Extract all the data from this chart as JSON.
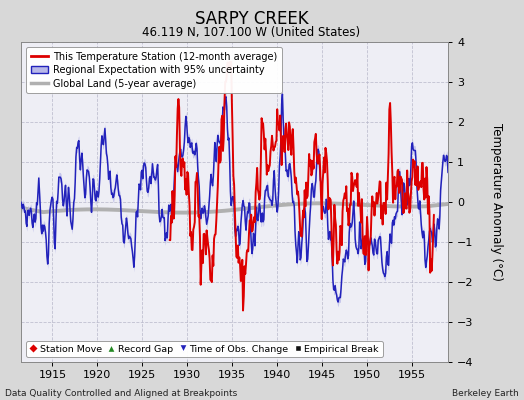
{
  "title": "SARPY CREEK",
  "subtitle": "46.119 N, 107.100 W (United States)",
  "ylabel": "Temperature Anomaly (°C)",
  "xlabel_note": "Data Quality Controlled and Aligned at Breakpoints",
  "credit": "Berkeley Earth",
  "xlim": [
    1911.5,
    1959.0
  ],
  "ylim": [
    -4,
    4
  ],
  "yticks": [
    -4,
    -3,
    -2,
    -1,
    0,
    1,
    2,
    3,
    4
  ],
  "xticks": [
    1915,
    1920,
    1925,
    1930,
    1935,
    1940,
    1945,
    1950,
    1955
  ],
  "blue_color": "#2222bb",
  "blue_fill_color": "#b8b8e8",
  "red_color": "#dd0000",
  "gray_color": "#b0b0b0",
  "background_color": "#d8d8d8",
  "plot_bg_color": "#eeeef5",
  "legend1_items": [
    "This Temperature Station (12-month average)",
    "Regional Expectation with 95% uncertainty",
    "Global Land (5-year average)"
  ],
  "legend2_items": [
    "Station Move",
    "Record Gap",
    "Time of Obs. Change",
    "Empirical Break"
  ],
  "red_start_year": 1928.0,
  "red_end_year": 1957.5,
  "seed": 7
}
